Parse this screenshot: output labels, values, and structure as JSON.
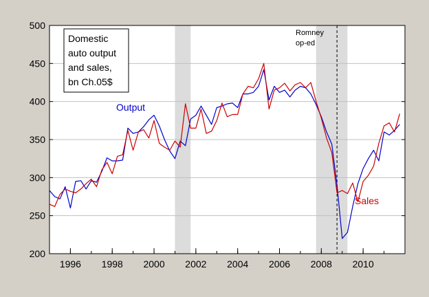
{
  "chart_data": {
    "type": "line",
    "title_box": [
      "Domestic",
      "auto output",
      "and sales,",
      "bn Ch.05$"
    ],
    "annotation": [
      "Romney",
      "op-ed"
    ],
    "series": [
      {
        "name": "Output",
        "color": "#0000cc",
        "x": [
          1995.0,
          1995.25,
          1995.5,
          1995.75,
          1996.0,
          1996.25,
          1996.5,
          1996.75,
          1997.0,
          1997.25,
          1997.5,
          1997.75,
          1998.0,
          1998.25,
          1998.5,
          1998.75,
          1999.0,
          1999.25,
          1999.5,
          1999.75,
          2000.0,
          2000.25,
          2000.5,
          2000.75,
          2001.0,
          2001.25,
          2001.5,
          2001.75,
          2002.0,
          2002.25,
          2002.5,
          2002.75,
          2003.0,
          2003.25,
          2003.5,
          2003.75,
          2004.0,
          2004.25,
          2004.5,
          2004.75,
          2005.0,
          2005.25,
          2005.5,
          2005.75,
          2006.0,
          2006.25,
          2006.5,
          2006.75,
          2007.0,
          2007.25,
          2007.5,
          2007.75,
          2008.0,
          2008.25,
          2008.5,
          2008.75,
          2009.0,
          2009.25,
          2009.5,
          2009.75,
          2010.0,
          2010.25,
          2010.5,
          2010.75,
          2011.0,
          2011.25,
          2011.5,
          2011.75
        ],
        "values": [
          283,
          275,
          272,
          288,
          260,
          295,
          296,
          285,
          296,
          294,
          308,
          326,
          322,
          322,
          323,
          365,
          358,
          360,
          367,
          376,
          382,
          368,
          350,
          335,
          325,
          348,
          342,
          377,
          382,
          394,
          382,
          370,
          392,
          394,
          397,
          398,
          392,
          410,
          410,
          412,
          420,
          442,
          402,
          420,
          412,
          415,
          406,
          415,
          420,
          418,
          410,
          396,
          380,
          360,
          344,
          290,
          220,
          228,
          262,
          292,
          312,
          325,
          336,
          322,
          360,
          356,
          362,
          370
        ]
      },
      {
        "name": "Sales",
        "color": "#cc0000",
        "x": [
          1995.0,
          1995.25,
          1995.5,
          1995.75,
          1996.0,
          1996.25,
          1996.5,
          1996.75,
          1997.0,
          1997.25,
          1997.5,
          1997.75,
          1998.0,
          1998.25,
          1998.5,
          1998.75,
          1999.0,
          1999.25,
          1999.5,
          1999.75,
          2000.0,
          2000.25,
          2000.5,
          2000.75,
          2001.0,
          2001.25,
          2001.5,
          2001.75,
          2002.0,
          2002.25,
          2002.5,
          2002.75,
          2003.0,
          2003.25,
          2003.5,
          2003.75,
          2004.0,
          2004.25,
          2004.5,
          2004.75,
          2005.0,
          2005.25,
          2005.5,
          2005.75,
          2006.0,
          2006.25,
          2006.5,
          2006.75,
          2007.0,
          2007.25,
          2007.5,
          2007.75,
          2008.0,
          2008.25,
          2008.5,
          2008.75,
          2009.0,
          2009.25,
          2009.5,
          2009.75,
          2010.0,
          2010.25,
          2010.5,
          2010.75,
          2011.0,
          2011.25,
          2011.5,
          2011.75
        ],
        "values": [
          265,
          262,
          278,
          285,
          282,
          280,
          285,
          292,
          298,
          288,
          310,
          320,
          305,
          328,
          330,
          362,
          336,
          360,
          363,
          352,
          375,
          345,
          340,
          336,
          348,
          340,
          397,
          365,
          365,
          390,
          358,
          361,
          375,
          398,
          380,
          383,
          383,
          410,
          420,
          418,
          430,
          450,
          390,
          415,
          418,
          424,
          414,
          422,
          425,
          418,
          425,
          400,
          378,
          352,
          333,
          280,
          283,
          279,
          293,
          268,
          295,
          303,
          315,
          345,
          368,
          372,
          360,
          384
        ]
      }
    ],
    "recessions": [
      [
        2001.0,
        2001.75
      ],
      [
        2007.75,
        2009.25
      ]
    ],
    "event_x": 2008.75,
    "x_ticks": [
      "1996",
      "1998",
      "2000",
      "2002",
      "2004",
      "2006",
      "2008",
      "2010"
    ],
    "y_ticks": [
      "200",
      "250",
      "300",
      "350",
      "400",
      "450",
      "500"
    ],
    "xlim": [
      1995,
      2012
    ],
    "ylim": [
      200,
      500
    ],
    "grid": true,
    "background": "#ffffff",
    "frame_color": "#d4d0c8"
  }
}
